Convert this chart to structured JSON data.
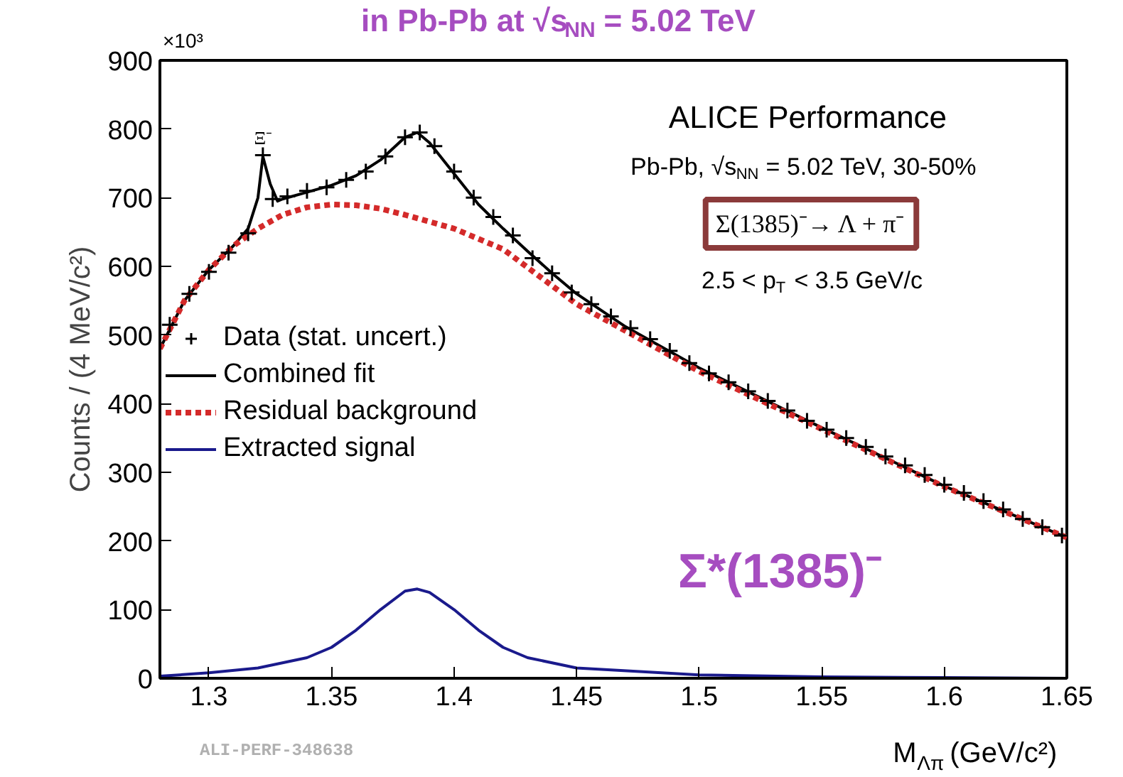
{
  "chart_data": {
    "type": "line",
    "title": "in Pb-Pb at √s$_{NN}$ = 5.02 TeV",
    "xlabel": "M$_{Λπ}$ (GeV/c²)",
    "ylabel": "Counts / (4 MeV/c²)",
    "xlim": [
      1.28,
      1.65
    ],
    "xticks": [
      1.3,
      1.35,
      1.4,
      1.45,
      1.5,
      1.55,
      1.6,
      1.65
    ],
    "ylim": [
      0,
      900
    ],
    "yticks": [
      0,
      100,
      200,
      300,
      400,
      500,
      600,
      700,
      800,
      900
    ],
    "grid": false,
    "legend": "left",
    "series": [
      {
        "name": "Data (stat. uncert.)",
        "type": "scatter",
        "marker": "cross",
        "color": "#000000",
        "x": [
          1.284,
          1.292,
          1.3,
          1.308,
          1.316,
          1.322,
          1.326,
          1.332,
          1.34,
          1.348,
          1.356,
          1.364,
          1.372,
          1.38,
          1.386,
          1.392,
          1.4,
          1.408,
          1.416,
          1.424,
          1.432,
          1.44,
          1.448,
          1.456,
          1.464,
          1.472,
          1.48,
          1.488,
          1.496,
          1.504,
          1.512,
          1.52,
          1.528,
          1.536,
          1.544,
          1.552,
          1.56,
          1.568,
          1.576,
          1.584,
          1.592,
          1.6,
          1.608,
          1.616,
          1.624,
          1.632,
          1.64,
          1.648
        ],
        "values": [
          515,
          560,
          592,
          620,
          648,
          762,
          698,
          702,
          710,
          715,
          726,
          738,
          760,
          788,
          795,
          775,
          738,
          700,
          672,
          645,
          612,
          590,
          562,
          545,
          527,
          510,
          494,
          477,
          459,
          444,
          431,
          418,
          404,
          390,
          375,
          362,
          350,
          337,
          323,
          310,
          296,
          282,
          270,
          258,
          246,
          232,
          220,
          208
        ]
      },
      {
        "name": "Combined fit",
        "line_style": "solid",
        "color": "#000000",
        "x": [
          1.28,
          1.29,
          1.3,
          1.31,
          1.316,
          1.32,
          1.322,
          1.325,
          1.328,
          1.33,
          1.34,
          1.35,
          1.36,
          1.37,
          1.38,
          1.385,
          1.39,
          1.4,
          1.41,
          1.42,
          1.43,
          1.44,
          1.45,
          1.47,
          1.5,
          1.55,
          1.6,
          1.65
        ],
        "values": [
          480,
          550,
          595,
          630,
          655,
          700,
          760,
          720,
          695,
          698,
          708,
          718,
          732,
          755,
          788,
          795,
          780,
          735,
          690,
          655,
          622,
          590,
          560,
          512,
          452,
          365,
          280,
          205
        ]
      },
      {
        "name": "Residual background",
        "line_style": "dotted",
        "color": "#d42a2a",
        "x": [
          1.28,
          1.29,
          1.3,
          1.31,
          1.32,
          1.33,
          1.34,
          1.35,
          1.36,
          1.37,
          1.38,
          1.39,
          1.4,
          1.42,
          1.45,
          1.5,
          1.55,
          1.6,
          1.65
        ],
        "values": [
          480,
          550,
          595,
          630,
          655,
          675,
          686,
          690,
          689,
          684,
          675,
          665,
          655,
          625,
          545,
          447,
          363,
          279,
          205
        ]
      },
      {
        "name": "Extracted signal",
        "line_style": "solid",
        "color": "#1a1a8c",
        "x": [
          1.28,
          1.3,
          1.32,
          1.34,
          1.35,
          1.36,
          1.37,
          1.38,
          1.385,
          1.39,
          1.4,
          1.41,
          1.42,
          1.43,
          1.45,
          1.5,
          1.55,
          1.6,
          1.65
        ],
        "values": [
          3,
          8,
          15,
          30,
          45,
          70,
          100,
          127,
          130,
          125,
          100,
          70,
          45,
          30,
          15,
          5,
          2,
          1,
          0
        ]
      }
    ],
    "annotations": [
      "×10³",
      "ALICE Performance",
      "Pb-Pb, √s$_{NN}$ = 5.02 TeV, 30-50%",
      "Σ(1385)⁻→ Λ + π⁻",
      "2.5 < p$_{T}$ < 3.5 GeV/c",
      "Σ*(1385)⁻",
      {
        "text": "Ξ⁻",
        "x": 1.322,
        "y": 762
      },
      "ALI-PERF-348638"
    ]
  }
}
